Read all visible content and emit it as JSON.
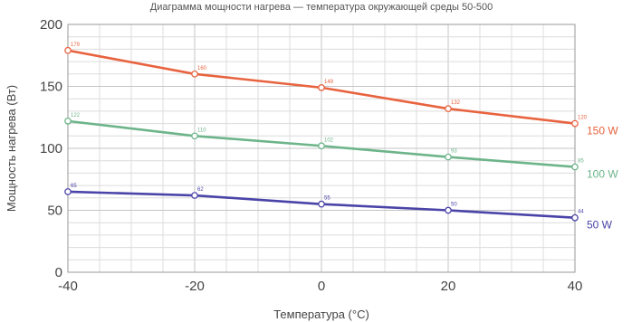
{
  "chart_data": {
    "type": "line",
    "title": "Диаграмма мощности нагрева — температура окружающей среды 50-500",
    "xlabel": "Температура (°C)",
    "ylabel": "Мощность нагрева (Вт)",
    "xlim": [
      -40,
      40
    ],
    "ylim": [
      0,
      200
    ],
    "x_ticks": [
      -40,
      -20,
      0,
      20,
      40
    ],
    "y_ticks": [
      0,
      50,
      100,
      150,
      200
    ],
    "x_tick_labels": [
      "-40",
      "-20",
      "0",
      "20",
      "40"
    ],
    "y_tick_labels": [
      "0",
      "50",
      "100",
      "150",
      "200"
    ],
    "grid": true,
    "legend": "right",
    "series": [
      {
        "name": "150 W",
        "color": "#e8633f",
        "x": [
          -40,
          -20,
          0,
          20,
          40
        ],
        "y": [
          179,
          160,
          149,
          132,
          120
        ],
        "labels": [
          "179",
          "160",
          "149",
          "132",
          "120"
        ]
      },
      {
        "name": "100 W",
        "color": "#6db48a",
        "x": [
          -40,
          -20,
          0,
          20,
          40
        ],
        "y": [
          122,
          110,
          102,
          93,
          85
        ],
        "labels": [
          "122",
          "110",
          "102",
          "93",
          "85"
        ]
      },
      {
        "name": "50 W",
        "color": "#4a44a8",
        "x": [
          -40,
          -20,
          0,
          20,
          40
        ],
        "y": [
          65,
          62,
          55,
          50,
          44
        ],
        "labels": [
          "65",
          "62",
          "55",
          "50",
          "44"
        ]
      }
    ]
  }
}
